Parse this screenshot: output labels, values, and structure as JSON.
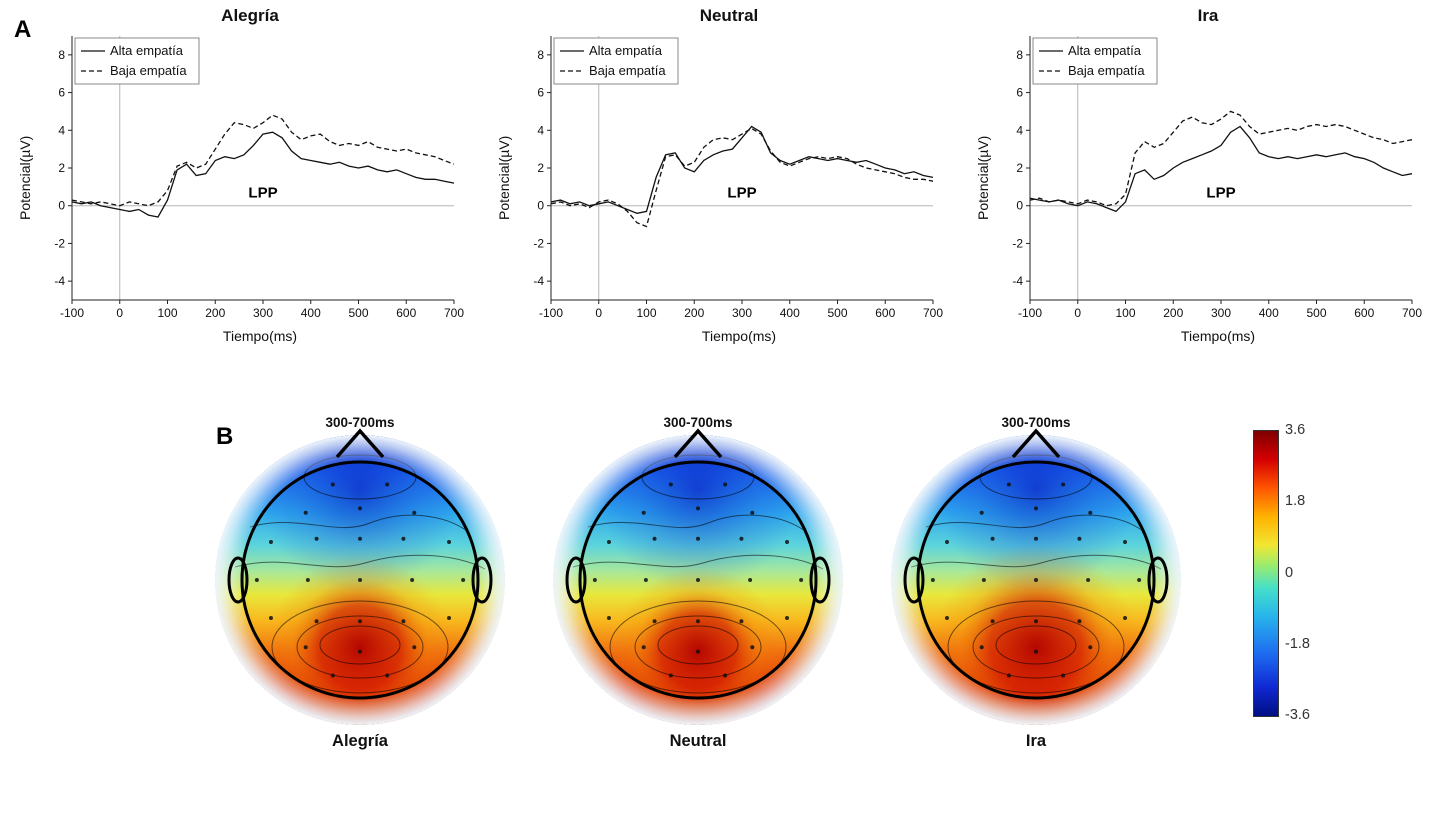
{
  "figure": {
    "panel_a_label": "A",
    "panel_b_label": "B"
  },
  "chart_data": [
    {
      "type": "line",
      "title": "Alegría",
      "xlabel": "Tiempo(ms)",
      "ylabel": "Potencial(µV)",
      "annotation": "LPP",
      "xlim": [
        -100,
        700
      ],
      "ylim": [
        -5,
        9
      ],
      "xticks": [
        -100,
        0,
        100,
        200,
        300,
        400,
        500,
        600,
        700
      ],
      "yticks": [
        -4,
        -2,
        0,
        2,
        4,
        6,
        8
      ],
      "grid": false,
      "legend_position": "top-left",
      "x": [
        -100,
        -80,
        -60,
        -40,
        -20,
        0,
        20,
        40,
        60,
        80,
        100,
        120,
        140,
        160,
        180,
        200,
        220,
        240,
        260,
        280,
        300,
        320,
        340,
        360,
        380,
        400,
        420,
        440,
        460,
        480,
        500,
        520,
        540,
        560,
        580,
        600,
        620,
        640,
        660,
        680,
        700
      ],
      "series": [
        {
          "name": "Alta empatía",
          "style": "solid",
          "y": [
            0.2,
            0.1,
            0.2,
            0,
            -0.1,
            -0.2,
            -0.3,
            -0.2,
            -0.5,
            -0.6,
            0.3,
            1.9,
            2.2,
            1.6,
            1.7,
            2.4,
            2.6,
            2.5,
            2.7,
            3.2,
            3.8,
            3.9,
            3.6,
            2.9,
            2.5,
            2.4,
            2.3,
            2.2,
            2.3,
            2.1,
            2.0,
            2.1,
            1.9,
            1.8,
            1.9,
            1.7,
            1.5,
            1.4,
            1.4,
            1.3,
            1.2
          ]
        },
        {
          "name": "Baja empatía",
          "style": "dashed",
          "y": [
            0.3,
            0.2,
            0.1,
            0.2,
            0.1,
            0,
            0.2,
            0.1,
            0,
            0.2,
            0.8,
            2.1,
            2.3,
            2.0,
            2.2,
            3.0,
            3.8,
            4.4,
            4.3,
            4.1,
            4.4,
            4.8,
            4.6,
            3.9,
            3.5,
            3.7,
            3.8,
            3.4,
            3.2,
            3.3,
            3.2,
            3.4,
            3.1,
            3.0,
            2.9,
            3.0,
            2.8,
            2.7,
            2.6,
            2.4,
            2.2
          ]
        }
      ]
    },
    {
      "type": "line",
      "title": "Neutral",
      "xlabel": "Tiempo(ms)",
      "ylabel": "Potencial(µV)",
      "annotation": "LPP",
      "xlim": [
        -100,
        700
      ],
      "ylim": [
        -5,
        9
      ],
      "xticks": [
        -100,
        0,
        100,
        200,
        300,
        400,
        500,
        600,
        700
      ],
      "yticks": [
        -4,
        -2,
        0,
        2,
        4,
        6,
        8
      ],
      "grid": false,
      "legend_position": "top-left",
      "x": [
        -100,
        -80,
        -60,
        -40,
        -20,
        0,
        20,
        40,
        60,
        80,
        100,
        120,
        140,
        160,
        180,
        200,
        220,
        240,
        260,
        280,
        300,
        320,
        340,
        360,
        380,
        400,
        420,
        440,
        460,
        480,
        500,
        520,
        540,
        560,
        580,
        600,
        620,
        640,
        660,
        680,
        700
      ],
      "series": [
        {
          "name": "Alta empatía",
          "style": "solid",
          "y": [
            0.2,
            0.3,
            0.1,
            0.2,
            0,
            0.1,
            0.2,
            0,
            -0.2,
            -0.4,
            -0.3,
            1.5,
            2.7,
            2.8,
            2.0,
            1.8,
            2.4,
            2.7,
            2.9,
            3.0,
            3.6,
            4.2,
            3.9,
            2.8,
            2.4,
            2.2,
            2.4,
            2.6,
            2.5,
            2.4,
            2.5,
            2.4,
            2.3,
            2.4,
            2.2,
            2.0,
            1.9,
            1.7,
            1.8,
            1.6,
            1.5
          ]
        },
        {
          "name": "Baja empatía",
          "style": "dashed",
          "y": [
            0.1,
            0.2,
            0,
            0.1,
            -0.1,
            0.2,
            0.3,
            0.1,
            -0.3,
            -0.9,
            -1.1,
            0.8,
            2.6,
            2.7,
            2.1,
            2.3,
            3.1,
            3.5,
            3.6,
            3.5,
            3.8,
            4.1,
            3.8,
            2.9,
            2.3,
            2.1,
            2.3,
            2.5,
            2.6,
            2.5,
            2.6,
            2.5,
            2.2,
            2.0,
            1.9,
            1.8,
            1.7,
            1.5,
            1.4,
            1.4,
            1.3
          ]
        }
      ]
    },
    {
      "type": "line",
      "title": "Ira",
      "xlabel": "Tiempo(ms)",
      "ylabel": "Potencial(µV)",
      "annotation": "LPP",
      "xlim": [
        -100,
        700
      ],
      "ylim": [
        -5,
        9
      ],
      "xticks": [
        -100,
        0,
        100,
        200,
        300,
        400,
        500,
        600,
        700
      ],
      "yticks": [
        -4,
        -2,
        0,
        2,
        4,
        6,
        8
      ],
      "grid": false,
      "legend_position": "top-left",
      "x": [
        -100,
        -80,
        -60,
        -40,
        -20,
        0,
        20,
        40,
        60,
        80,
        100,
        120,
        140,
        160,
        180,
        200,
        220,
        240,
        260,
        280,
        300,
        320,
        340,
        360,
        380,
        400,
        420,
        440,
        460,
        480,
        500,
        520,
        540,
        560,
        580,
        600,
        620,
        640,
        660,
        680,
        700
      ],
      "series": [
        {
          "name": "Alta empatía",
          "style": "solid",
          "y": [
            0.4,
            0.3,
            0.2,
            0.3,
            0.1,
            0,
            0.2,
            0.1,
            -0.1,
            -0.3,
            0.2,
            1.7,
            1.9,
            1.4,
            1.6,
            2.0,
            2.3,
            2.5,
            2.7,
            2.9,
            3.2,
            3.9,
            4.2,
            3.6,
            2.8,
            2.6,
            2.5,
            2.6,
            2.5,
            2.6,
            2.7,
            2.6,
            2.7,
            2.8,
            2.6,
            2.5,
            2.3,
            2.0,
            1.8,
            1.6,
            1.7
          ]
        },
        {
          "name": "Baja empatía",
          "style": "dashed",
          "y": [
            0.3,
            0.4,
            0.2,
            0.3,
            0.2,
            0.1,
            0.3,
            0.2,
            0,
            0.1,
            0.6,
            2.8,
            3.4,
            3.1,
            3.3,
            3.9,
            4.5,
            4.7,
            4.4,
            4.3,
            4.6,
            5.0,
            4.8,
            4.2,
            3.8,
            3.9,
            4.0,
            4.1,
            4.0,
            4.2,
            4.3,
            4.2,
            4.3,
            4.2,
            4.0,
            3.8,
            3.6,
            3.5,
            3.3,
            3.4,
            3.5
          ]
        }
      ]
    }
  ],
  "topo": {
    "window_label": "300-700ms",
    "maps": [
      {
        "label": "Alegría"
      },
      {
        "label": "Neutral"
      },
      {
        "label": "Ira"
      }
    ],
    "colorbar": {
      "ticks": [
        "3.6",
        "1.8",
        "0",
        "-1.8",
        "-3.6"
      ],
      "max_color": "#7f0000",
      "min_color": "#000f82"
    }
  }
}
